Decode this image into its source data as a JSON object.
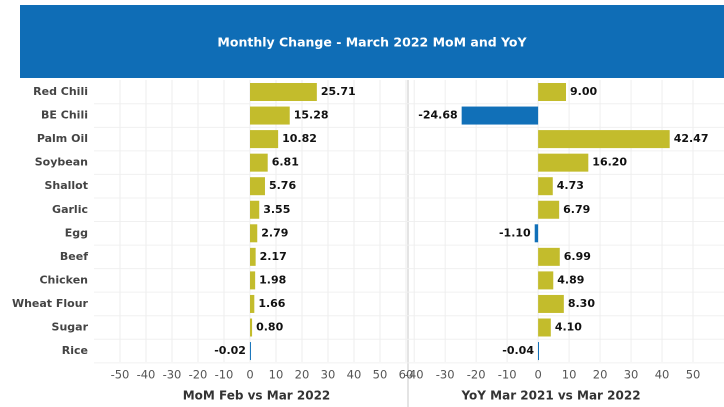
{
  "chart_data": [
    {
      "type": "bar",
      "orientation": "horizontal",
      "title": "Monthly Change - March 2022 MoM and YoY",
      "categories": [
        "Red Chili",
        "BE Chili",
        "Palm Oil",
        "Soybean",
        "Shallot",
        "Garlic",
        "Egg",
        "Beef",
        "Chicken",
        "Wheat Flour",
        "Sugar",
        "Rice"
      ],
      "values": [
        25.71,
        15.28,
        10.82,
        6.81,
        5.76,
        3.55,
        2.79,
        2.17,
        1.98,
        1.66,
        0.8,
        -0.02
      ],
      "value_labels": [
        "25.71",
        "15.28",
        "10.82",
        "6.81",
        "5.76",
        "3.55",
        "2.79",
        "2.17",
        "1.98",
        "1.66",
        "0.80",
        "-0.02"
      ],
      "xlim": [
        -55,
        60
      ],
      "xticks": [
        -50,
        -40,
        -30,
        -20,
        -10,
        0,
        10,
        20,
        30,
        40,
        50,
        60
      ],
      "x_label": "MoM Feb vs Mar 2022",
      "color": "#c3bc2c",
      "negative_color": "#1170b8",
      "grid": true
    },
    {
      "type": "bar",
      "orientation": "horizontal",
      "values": [
        9.0,
        -24.68,
        42.47,
        16.2,
        4.73,
        6.79,
        -1.1,
        6.99,
        4.89,
        8.3,
        4.1,
        -0.04
      ],
      "value_labels": [
        "9.00",
        "-24.68",
        "42.47",
        "16.20",
        "4.73",
        "6.79",
        "-1.10",
        "6.99",
        "4.89",
        "8.30",
        "4.10",
        "-0.04"
      ],
      "xlim": [
        -42,
        60
      ],
      "xticks": [
        -40,
        -30,
        -20,
        -10,
        0,
        10,
        20,
        30,
        40,
        50
      ],
      "x_label": "YoY Mar 2021 vs Mar 2022",
      "color": "#c3bc2c",
      "negative_color": "#1170b8",
      "grid": true
    }
  ]
}
